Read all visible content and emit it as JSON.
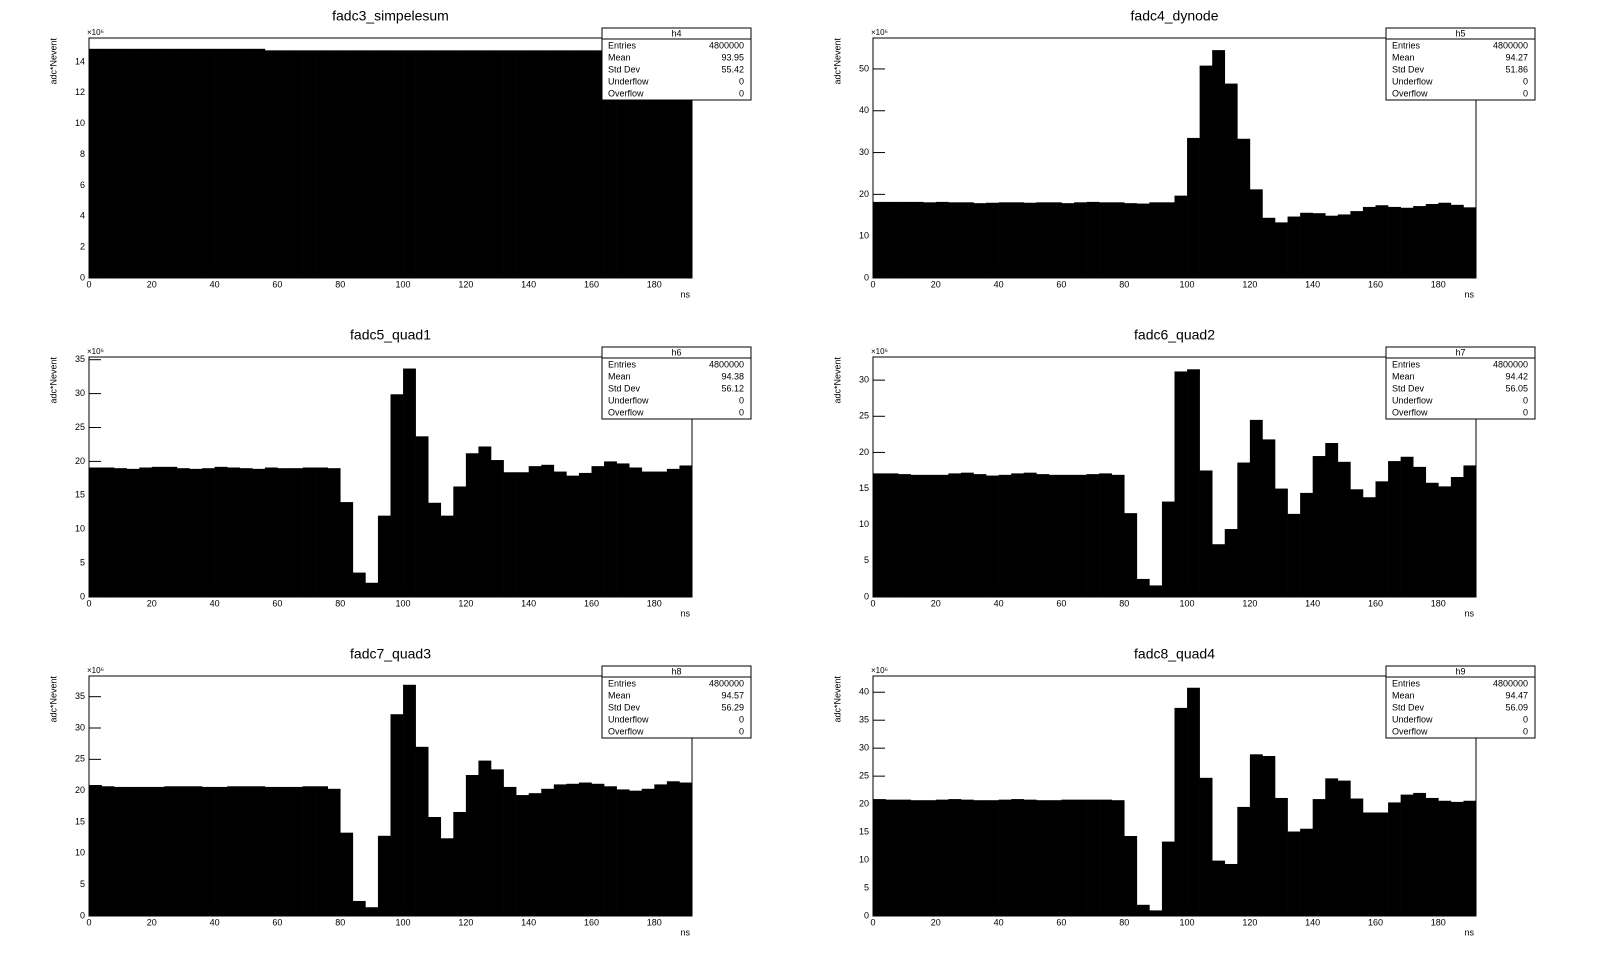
{
  "chart_data": [
    {
      "type": "histogram",
      "title": "fadc3_simpelesum",
      "ylabel": "adc*Nevent",
      "xlabel": "ns",
      "y_scale_label": "×10⁶",
      "color": "#000000",
      "bins": [
        0,
        4,
        8,
        12,
        16,
        20,
        24,
        28,
        32,
        36,
        40,
        44,
        48,
        52,
        56,
        60,
        64,
        68,
        72,
        76,
        80,
        84,
        88,
        92,
        96,
        100,
        104,
        108,
        112,
        116,
        120,
        124,
        128,
        132,
        136,
        140,
        144,
        148,
        152,
        156,
        160,
        164,
        168,
        172,
        176,
        180,
        184,
        188,
        192
      ],
      "values": [
        14.85,
        14.85,
        14.85,
        14.85,
        14.85,
        14.85,
        14.85,
        14.85,
        14.85,
        14.85,
        14.85,
        14.85,
        14.85,
        14.85,
        14.75,
        14.75,
        14.75,
        14.75,
        14.75,
        14.75,
        14.75,
        14.75,
        14.75,
        14.75,
        14.75,
        14.75,
        14.75,
        14.75,
        14.75,
        14.75,
        14.75,
        14.75,
        14.75,
        14.75,
        14.75,
        14.75,
        14.75,
        14.75,
        14.75,
        14.75,
        14.75,
        14.75,
        14.75,
        14.75,
        14.75,
        14.75,
        14.75,
        14.75
      ],
      "xlim": [
        0,
        192
      ],
      "xticks": [
        0,
        20,
        40,
        60,
        80,
        100,
        120,
        140,
        160,
        180
      ],
      "ylim": [
        0,
        15.55
      ],
      "yticks": [
        0,
        2,
        4,
        6,
        8,
        10,
        12,
        14
      ],
      "stats_title": "h4",
      "stats": [
        {
          "label": "Entries",
          "value": 4800000
        },
        {
          "label": "Mean",
          "value": 93.95
        },
        {
          "label": "Std Dev",
          "value": 55.42
        },
        {
          "label": "Underflow",
          "value": 0
        },
        {
          "label": "Overflow",
          "value": 0
        }
      ]
    },
    {
      "type": "histogram",
      "title": "fadc4_dynode",
      "ylabel": "adc*Nevent",
      "xlabel": "ns",
      "y_scale_label": "×10⁶",
      "color": "#000000",
      "bins": [
        0,
        4,
        8,
        12,
        16,
        20,
        24,
        28,
        32,
        36,
        40,
        44,
        48,
        52,
        56,
        60,
        64,
        68,
        72,
        76,
        80,
        84,
        88,
        92,
        96,
        100,
        104,
        108,
        112,
        116,
        120,
        124,
        128,
        132,
        136,
        140,
        144,
        148,
        152,
        156,
        160,
        164,
        168,
        172,
        176,
        180,
        184,
        188,
        192
      ],
      "values": [
        18.2,
        18.2,
        18.2,
        18.2,
        18.1,
        18.2,
        18.1,
        18.1,
        17.9,
        18.0,
        18.1,
        18.1,
        18.0,
        18.1,
        18.1,
        17.9,
        18.1,
        18.2,
        18.1,
        18.1,
        17.9,
        17.8,
        18.1,
        18.1,
        19.7,
        33.5,
        50.8,
        54.5,
        46.5,
        33.3,
        21.2,
        14.4,
        13.3,
        14.7,
        15.6,
        15.5,
        14.9,
        15.2,
        16.0,
        17.0,
        17.4,
        17.0,
        16.8,
        17.2,
        17.7,
        18.0,
        17.5,
        16.9
      ],
      "xlim": [
        0,
        192
      ],
      "xticks": [
        0,
        20,
        40,
        60,
        80,
        100,
        120,
        140,
        160,
        180
      ],
      "ylim": [
        0,
        57.4
      ],
      "yticks": [
        0,
        10,
        20,
        30,
        40,
        50
      ],
      "stats_title": "h5",
      "stats": [
        {
          "label": "Entries",
          "value": 4800000
        },
        {
          "label": "Mean",
          "value": 94.27
        },
        {
          "label": "Std Dev",
          "value": 51.86
        },
        {
          "label": "Underflow",
          "value": 0
        },
        {
          "label": "Overflow",
          "value": 0
        }
      ]
    },
    {
      "type": "histogram",
      "title": "fadc5_quad1",
      "ylabel": "adc*Nevent",
      "xlabel": "ns",
      "y_scale_label": "×10⁶",
      "color": "#000000",
      "bins": [
        0,
        4,
        8,
        12,
        16,
        20,
        24,
        28,
        32,
        36,
        40,
        44,
        48,
        52,
        56,
        60,
        64,
        68,
        72,
        76,
        80,
        84,
        88,
        92,
        96,
        100,
        104,
        108,
        112,
        116,
        120,
        124,
        128,
        132,
        136,
        140,
        144,
        148,
        152,
        156,
        160,
        164,
        168,
        172,
        176,
        180,
        184,
        188,
        192
      ],
      "values": [
        19.1,
        19.1,
        19.0,
        18.9,
        19.1,
        19.2,
        19.2,
        19.0,
        18.9,
        19.0,
        19.2,
        19.1,
        19.0,
        18.9,
        19.1,
        19.0,
        19.0,
        19.1,
        19.1,
        19.0,
        14.0,
        3.6,
        2.1,
        12.0,
        29.9,
        33.7,
        23.7,
        13.9,
        12.0,
        16.3,
        21.2,
        22.2,
        20.2,
        18.4,
        18.4,
        19.3,
        19.5,
        18.5,
        17.9,
        18.3,
        19.3,
        20.0,
        19.7,
        19.1,
        18.5,
        18.5,
        18.9,
        19.4
      ],
      "xlim": [
        0,
        192
      ],
      "xticks": [
        0,
        20,
        40,
        60,
        80,
        100,
        120,
        140,
        160,
        180
      ],
      "ylim": [
        0,
        35.4
      ],
      "yticks": [
        0,
        5,
        10,
        15,
        20,
        25,
        30,
        35
      ],
      "stats_title": "h6",
      "stats": [
        {
          "label": "Entries",
          "value": 4800000
        },
        {
          "label": "Mean",
          "value": 94.38
        },
        {
          "label": "Std Dev",
          "value": 56.12
        },
        {
          "label": "Underflow",
          "value": 0
        },
        {
          "label": "Overflow",
          "value": 0
        }
      ]
    },
    {
      "type": "histogram",
      "title": "fadc6_quad2",
      "ylabel": "adc*Nevent",
      "xlabel": "ns",
      "y_scale_label": "×10⁶",
      "color": "#000000",
      "bins": [
        0,
        4,
        8,
        12,
        16,
        20,
        24,
        28,
        32,
        36,
        40,
        44,
        48,
        52,
        56,
        60,
        64,
        68,
        72,
        76,
        80,
        84,
        88,
        92,
        96,
        100,
        104,
        108,
        112,
        116,
        120,
        124,
        128,
        132,
        136,
        140,
        144,
        148,
        152,
        156,
        160,
        164,
        168,
        172,
        176,
        180,
        184,
        188,
        192
      ],
      "values": [
        17.1,
        17.1,
        17.0,
        16.9,
        16.9,
        16.9,
        17.1,
        17.2,
        17.0,
        16.8,
        16.9,
        17.1,
        17.2,
        17.0,
        16.9,
        16.9,
        16.9,
        17.0,
        17.1,
        16.9,
        11.6,
        2.5,
        1.6,
        13.2,
        31.2,
        31.5,
        17.5,
        7.3,
        9.4,
        18.6,
        24.5,
        21.8,
        15.0,
        11.5,
        14.4,
        19.5,
        21.3,
        18.7,
        14.9,
        13.8,
        16.0,
        18.8,
        19.4,
        18.0,
        15.8,
        15.3,
        16.6,
        18.2
      ],
      "xlim": [
        0,
        192
      ],
      "xticks": [
        0,
        20,
        40,
        60,
        80,
        100,
        120,
        140,
        160,
        180
      ],
      "ylim": [
        0,
        33.2
      ],
      "yticks": [
        0,
        5,
        10,
        15,
        20,
        25,
        30
      ],
      "stats_title": "h7",
      "stats": [
        {
          "label": "Entries",
          "value": 4800000
        },
        {
          "label": "Mean",
          "value": 94.42
        },
        {
          "label": "Std Dev",
          "value": 56.05
        },
        {
          "label": "Underflow",
          "value": 0
        },
        {
          "label": "Overflow",
          "value": 0
        }
      ]
    },
    {
      "type": "histogram",
      "title": "fadc7_quad3",
      "ylabel": "adc*Nevent",
      "xlabel": "ns",
      "y_scale_label": "×10⁶",
      "color": "#000000",
      "bins": [
        0,
        4,
        8,
        12,
        16,
        20,
        24,
        28,
        32,
        36,
        40,
        44,
        48,
        52,
        56,
        60,
        64,
        68,
        72,
        76,
        80,
        84,
        88,
        92,
        96,
        100,
        104,
        108,
        112,
        116,
        120,
        124,
        128,
        132,
        136,
        140,
        144,
        148,
        152,
        156,
        160,
        164,
        168,
        172,
        176,
        180,
        184,
        188,
        192
      ],
      "values": [
        20.9,
        20.7,
        20.6,
        20.6,
        20.6,
        20.6,
        20.7,
        20.7,
        20.7,
        20.6,
        20.6,
        20.7,
        20.7,
        20.7,
        20.6,
        20.6,
        20.6,
        20.7,
        20.7,
        20.3,
        13.3,
        2.4,
        1.4,
        12.8,
        32.2,
        36.9,
        27.0,
        15.8,
        12.4,
        16.6,
        22.5,
        24.8,
        23.4,
        20.6,
        19.3,
        19.6,
        20.3,
        21.0,
        21.1,
        21.3,
        21.1,
        20.7,
        20.2,
        20.0,
        20.3,
        21.0,
        21.5,
        21.3
      ],
      "xlim": [
        0,
        192
      ],
      "xticks": [
        0,
        20,
        40,
        60,
        80,
        100,
        120,
        140,
        160,
        180
      ],
      "ylim": [
        0,
        38.3
      ],
      "yticks": [
        0,
        5,
        10,
        15,
        20,
        25,
        30,
        35
      ],
      "stats_title": "h8",
      "stats": [
        {
          "label": "Entries",
          "value": 4800000
        },
        {
          "label": "Mean",
          "value": 94.57
        },
        {
          "label": "Std Dev",
          "value": 56.29
        },
        {
          "label": "Underflow",
          "value": 0
        },
        {
          "label": "Overflow",
          "value": 0
        }
      ]
    },
    {
      "type": "histogram",
      "title": "fadc8_quad4",
      "ylabel": "adc*Nevent",
      "xlabel": "ns",
      "y_scale_label": "×10⁶",
      "color": "#000000",
      "bins": [
        0,
        4,
        8,
        12,
        16,
        20,
        24,
        28,
        32,
        36,
        40,
        44,
        48,
        52,
        56,
        60,
        64,
        68,
        72,
        76,
        80,
        84,
        88,
        92,
        96,
        100,
        104,
        108,
        112,
        116,
        120,
        124,
        128,
        132,
        136,
        140,
        144,
        148,
        152,
        156,
        160,
        164,
        168,
        172,
        176,
        180,
        184,
        188,
        192
      ],
      "values": [
        20.9,
        20.8,
        20.8,
        20.7,
        20.7,
        20.8,
        20.9,
        20.8,
        20.7,
        20.7,
        20.8,
        20.9,
        20.8,
        20.7,
        20.7,
        20.8,
        20.8,
        20.8,
        20.8,
        20.7,
        14.3,
        2.0,
        1.0,
        13.3,
        37.2,
        40.8,
        24.7,
        9.9,
        9.3,
        19.5,
        28.9,
        28.6,
        21.1,
        15.1,
        15.6,
        20.9,
        24.6,
        24.2,
        21.0,
        18.5,
        18.5,
        20.3,
        21.7,
        22.0,
        21.1,
        20.6,
        20.4,
        20.6
      ],
      "xlim": [
        0,
        192
      ],
      "xticks": [
        0,
        20,
        40,
        60,
        80,
        100,
        120,
        140,
        160,
        180
      ],
      "ylim": [
        0,
        42.9
      ],
      "yticks": [
        0,
        5,
        10,
        15,
        20,
        25,
        30,
        35,
        40
      ],
      "stats_title": "h9",
      "stats": [
        {
          "label": "Entries",
          "value": 4800000
        },
        {
          "label": "Mean",
          "value": 94.47
        },
        {
          "label": "Std Dev",
          "value": 56.09
        },
        {
          "label": "Underflow",
          "value": 0
        },
        {
          "label": "Overflow",
          "value": 0
        }
      ]
    }
  ]
}
